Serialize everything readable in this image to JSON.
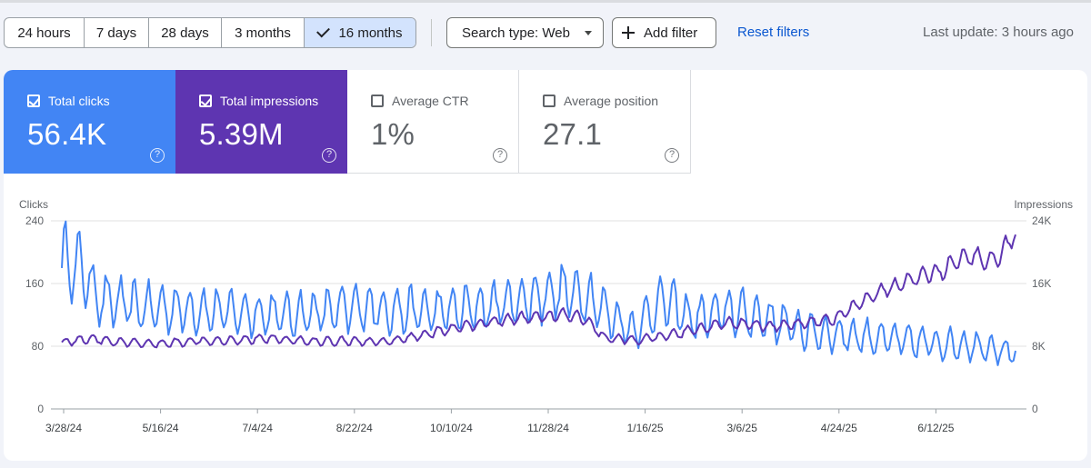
{
  "toolbar": {
    "date_ranges": [
      "24 hours",
      "7 days",
      "28 days",
      "3 months",
      "16 months"
    ],
    "active_range": "16 months",
    "search_type": "Search type: Web",
    "add_filter": "Add filter",
    "reset": "Reset filters",
    "last_update": "Last update: 3 hours ago"
  },
  "metrics": [
    {
      "label": "Total clicks",
      "value": "56.4K",
      "checked": true,
      "color": "#4285f4"
    },
    {
      "label": "Total impressions",
      "value": "5.39M",
      "checked": true,
      "color": "#5e35b1"
    },
    {
      "label": "Average CTR",
      "value": "1%",
      "checked": false
    },
    {
      "label": "Average position",
      "value": "27.1",
      "checked": false
    }
  ],
  "help_glyph": "?",
  "chart_data": {
    "type": "line",
    "x_ticks": [
      "3/28/24",
      "5/16/24",
      "7/4/24",
      "8/22/24",
      "10/10/24",
      "11/28/24",
      "1/16/25",
      "3/6/25",
      "4/24/25",
      "6/12/25"
    ],
    "y_left": {
      "label": "Clicks",
      "ticks": [
        "240",
        "160",
        "80",
        "0"
      ],
      "range": [
        0,
        240
      ]
    },
    "y_right": {
      "label": "Impressions",
      "ticks": [
        "24K",
        "16K",
        "8K",
        "0"
      ],
      "range": [
        0,
        24000
      ]
    },
    "series": [
      {
        "name": "Clicks",
        "axis": "left",
        "color": "#4285f4",
        "trend": [
          [
            0,
            190
          ],
          [
            0.02,
            180
          ],
          [
            0.04,
            140
          ],
          [
            0.08,
            130
          ],
          [
            0.12,
            128
          ],
          [
            0.16,
            125
          ],
          [
            0.2,
            122
          ],
          [
            0.24,
            120
          ],
          [
            0.28,
            125
          ],
          [
            0.32,
            130
          ],
          [
            0.36,
            125
          ],
          [
            0.4,
            125
          ],
          [
            0.44,
            130
          ],
          [
            0.48,
            138
          ],
          [
            0.52,
            150
          ],
          [
            0.55,
            145
          ],
          [
            0.58,
            115
          ],
          [
            0.6,
            100
          ],
          [
            0.63,
            140
          ],
          [
            0.66,
            115
          ],
          [
            0.7,
            125
          ],
          [
            0.74,
            115
          ],
          [
            0.78,
            100
          ],
          [
            0.82,
            95
          ],
          [
            0.86,
            90
          ],
          [
            0.9,
            85
          ],
          [
            0.94,
            82
          ],
          [
            0.97,
            80
          ],
          [
            1.0,
            70
          ]
        ]
      },
      {
        "name": "Impressions",
        "axis": "right",
        "color": "#5e35b1",
        "trend": [
          [
            0,
            8500
          ],
          [
            0.03,
            9000
          ],
          [
            0.06,
            8500
          ],
          [
            0.1,
            8300
          ],
          [
            0.14,
            8700
          ],
          [
            0.18,
            8800
          ],
          [
            0.22,
            9000
          ],
          [
            0.26,
            8600
          ],
          [
            0.3,
            8700
          ],
          [
            0.34,
            8500
          ],
          [
            0.38,
            9500
          ],
          [
            0.42,
            10500
          ],
          [
            0.46,
            11300
          ],
          [
            0.5,
            11800
          ],
          [
            0.53,
            12000
          ],
          [
            0.55,
            11400
          ],
          [
            0.57,
            9000
          ],
          [
            0.6,
            8800
          ],
          [
            0.63,
            9200
          ],
          [
            0.66,
            10000
          ],
          [
            0.7,
            11000
          ],
          [
            0.74,
            10500
          ],
          [
            0.78,
            11000
          ],
          [
            0.81,
            11500
          ],
          [
            0.83,
            13000
          ],
          [
            0.86,
            15000
          ],
          [
            0.89,
            16500
          ],
          [
            0.92,
            17500
          ],
          [
            0.95,
            19500
          ],
          [
            0.98,
            19000
          ],
          [
            1.0,
            22500
          ]
        ]
      }
    ]
  }
}
